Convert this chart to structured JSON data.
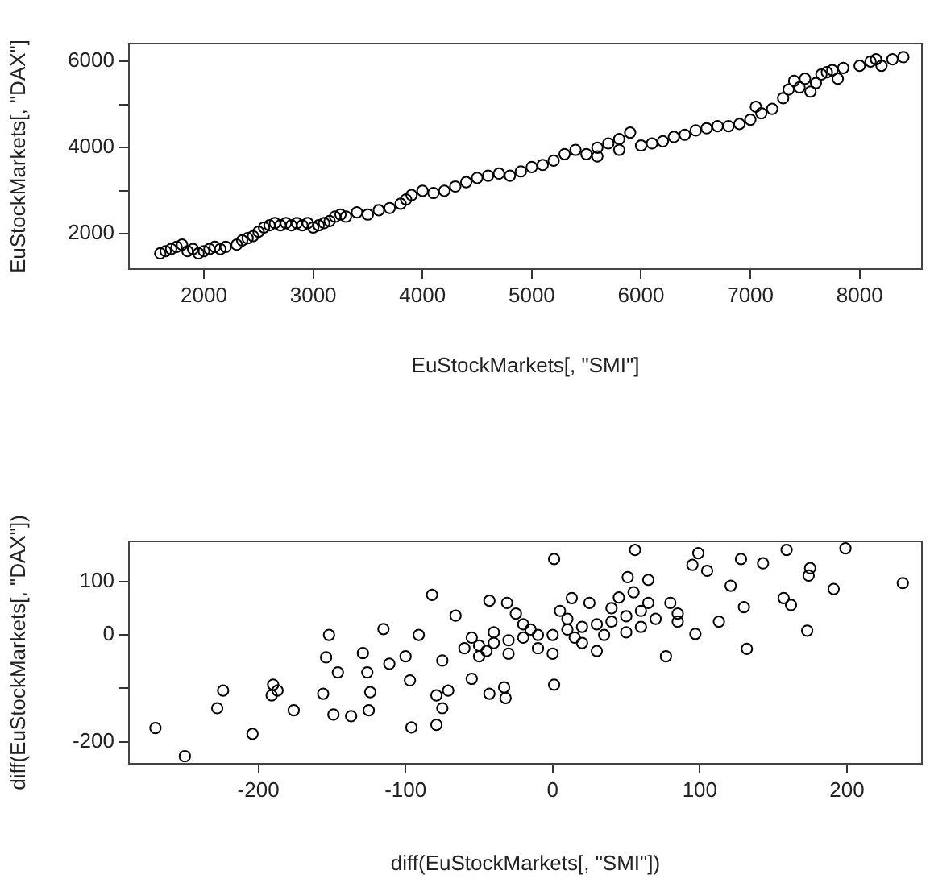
{
  "chart_data": [
    {
      "type": "scatter",
      "xlabel": "EuStockMarkets[, \"SMI\"]",
      "ylabel": "EuStockMarkets[, \"DAX\"]",
      "marker": "circle",
      "xlim": [
        1314,
        8570
      ],
      "ylim": [
        1184,
        6417
      ],
      "xticks": [
        2000,
        3000,
        4000,
        5000,
        6000,
        7000,
        8000
      ],
      "yticks": [
        2000,
        {
          "value": 3000,
          "label": null
        },
        4000,
        {
          "value": 5000,
          "label": null
        },
        6000
      ],
      "series": [
        {
          "color": "#000000",
          "x": [
            1600,
            1650,
            1700,
            1750,
            1800,
            1850,
            1900,
            1950,
            2000,
            2050,
            2100,
            2150,
            2200,
            2300,
            2350,
            2400,
            2450,
            2500,
            2550,
            2600,
            2650,
            2700,
            2750,
            2800,
            2850,
            2900,
            2950,
            3000,
            3050,
            3100,
            3150,
            3200,
            3250,
            3300,
            3400,
            3500,
            3600,
            3700,
            3800,
            3850,
            3900,
            4000,
            4100,
            4200,
            4300,
            4400,
            4500,
            4600,
            4700,
            4800,
            4900,
            5000,
            5100,
            5200,
            5300,
            5400,
            5500,
            5600,
            5700,
            5800,
            5900,
            5800,
            5600,
            6000,
            6100,
            6200,
            6300,
            6400,
            6500,
            6600,
            6700,
            6800,
            6900,
            7000,
            7050,
            7100,
            7200,
            7300,
            7350,
            7400,
            7450,
            7500,
            7550,
            7600,
            7650,
            7700,
            7750,
            7800,
            7850,
            8000,
            8100,
            8150,
            8200,
            8300,
            8400
          ],
          "values": [
            1550,
            1600,
            1650,
            1700,
            1750,
            1600,
            1650,
            1550,
            1600,
            1650,
            1700,
            1650,
            1700,
            1750,
            1850,
            1900,
            1950,
            2050,
            2150,
            2200,
            2250,
            2200,
            2250,
            2200,
            2250,
            2200,
            2250,
            2150,
            2200,
            2250,
            2300,
            2400,
            2450,
            2400,
            2500,
            2450,
            2550,
            2600,
            2700,
            2800,
            2900,
            3000,
            2950,
            3000,
            3100,
            3200,
            3300,
            3350,
            3400,
            3350,
            3450,
            3550,
            3600,
            3700,
            3850,
            3950,
            3850,
            4000,
            4100,
            4200,
            4350,
            3950,
            3800,
            4050,
            4100,
            4150,
            4250,
            4300,
            4400,
            4450,
            4500,
            4500,
            4550,
            4650,
            4950,
            4800,
            4900,
            5150,
            5350,
            5550,
            5400,
            5600,
            5300,
            5500,
            5700,
            5750,
            5800,
            5600,
            5850,
            5900,
            6000,
            6050,
            5900,
            6050,
            6100
          ]
        }
      ]
    },
    {
      "type": "scatter",
      "xlabel": "diff(EuStockMarkets[, \"SMI\"])",
      "ylabel": "diff(EuStockMarkets[, \"DAX\"])",
      "marker": "circle",
      "xlim": [
        -288,
        251
      ],
      "ylim": [
        -241,
        175
      ],
      "xticks": [
        -200,
        -100,
        0,
        100,
        200
      ],
      "yticks": [
        -200,
        {
          "value": -100,
          "label": null
        },
        0,
        100
      ],
      "series": [
        {
          "color": "#000000",
          "x": [
            -270,
            -250,
            -224,
            -228,
            -204,
            -190,
            -187,
            -191,
            -176,
            -152,
            -154,
            -146,
            -156,
            -149,
            -137,
            -125,
            -124,
            -129,
            -126,
            -115,
            -111,
            -100,
            -96,
            -97,
            -91,
            -82,
            -79,
            -79,
            -75,
            -75,
            -71,
            -66,
            -55,
            -43,
            -43,
            -32,
            -33,
            -31,
            1,
            1,
            13,
            56,
            51,
            77,
            99,
            95,
            105,
            128,
            132,
            130,
            143,
            159,
            157,
            162,
            173,
            174,
            175,
            191,
            199,
            238,
            97,
            65,
            85,
            113,
            121,
            -60,
            -50,
            -40,
            -30,
            -20,
            -10,
            0,
            10,
            20,
            30,
            40,
            50,
            60,
            -50,
            -40,
            -30,
            -20,
            -10,
            0,
            10,
            20,
            30,
            40,
            50,
            60,
            45,
            55,
            -25,
            5,
            15,
            35,
            -45,
            -55,
            25,
            65,
            -15,
            70,
            80,
            85
          ],
          "values": [
            -174,
            -227,
            -104,
            -137,
            -185,
            -93,
            -104,
            -113,
            -141,
            0,
            -42,
            -70,
            -110,
            -149,
            -152,
            -141,
            -107,
            -34,
            -70,
            11,
            -54,
            -40,
            -173,
            -85,
            0,
            75,
            -168,
            -113,
            -48,
            -137,
            -104,
            36,
            -82,
            64,
            -110,
            -118,
            -98,
            60,
            142,
            -93,
            69,
            159,
            108,
            -40,
            153,
            131,
            120,
            142,
            -26,
            52,
            134,
            159,
            69,
            56,
            8,
            111,
            125,
            86,
            162,
            97,
            2,
            103,
            25,
            25,
            92,
            -25,
            -20,
            -15,
            -10,
            -5,
            0,
            0,
            10,
            15,
            20,
            25,
            35,
            45,
            -40,
            5,
            -35,
            20,
            -25,
            -35,
            30,
            -15,
            -30,
            50,
            5,
            15,
            70,
            80,
            40,
            45,
            -5,
            0,
            -30,
            -5,
            60,
            60,
            10,
            30,
            60,
            40
          ]
        }
      ]
    }
  ]
}
